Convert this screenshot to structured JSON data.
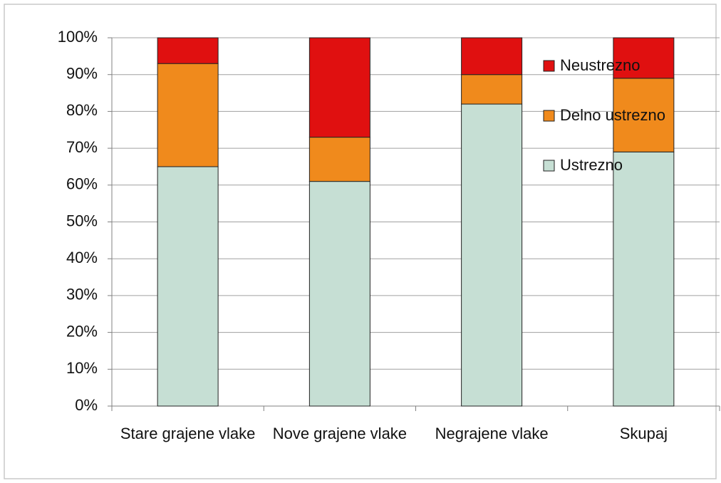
{
  "chart_data": {
    "type": "stacked_bar",
    "categories": [
      "Stare grajene vlake",
      "Nove grajene vlake",
      "Negrajene vlake",
      "Skupaj"
    ],
    "series": [
      {
        "name": "Ustrezno",
        "color": "#c6dfd4",
        "values": [
          65,
          61,
          82,
          69
        ]
      },
      {
        "name": "Delno ustrezno",
        "color": "#f08a1c",
        "values": [
          28,
          12,
          8,
          20
        ]
      },
      {
        "name": "Neustrezno",
        "color": "#e01010",
        "values": [
          7,
          27,
          10,
          11
        ]
      }
    ],
    "ylim": [
      0,
      100
    ],
    "yticks": [
      {
        "value": 0,
        "label": "0%"
      },
      {
        "value": 10,
        "label": "10%"
      },
      {
        "value": 20,
        "label": "20%"
      },
      {
        "value": 30,
        "label": "30%"
      },
      {
        "value": 40,
        "label": "40%"
      },
      {
        "value": 50,
        "label": "50%"
      },
      {
        "value": 60,
        "label": "60%"
      },
      {
        "value": 70,
        "label": "70%"
      },
      {
        "value": 80,
        "label": "80%"
      },
      {
        "value": 90,
        "label": "90%"
      },
      {
        "value": 100,
        "label": "100%"
      }
    ],
    "grid": true,
    "legend": "right"
  }
}
